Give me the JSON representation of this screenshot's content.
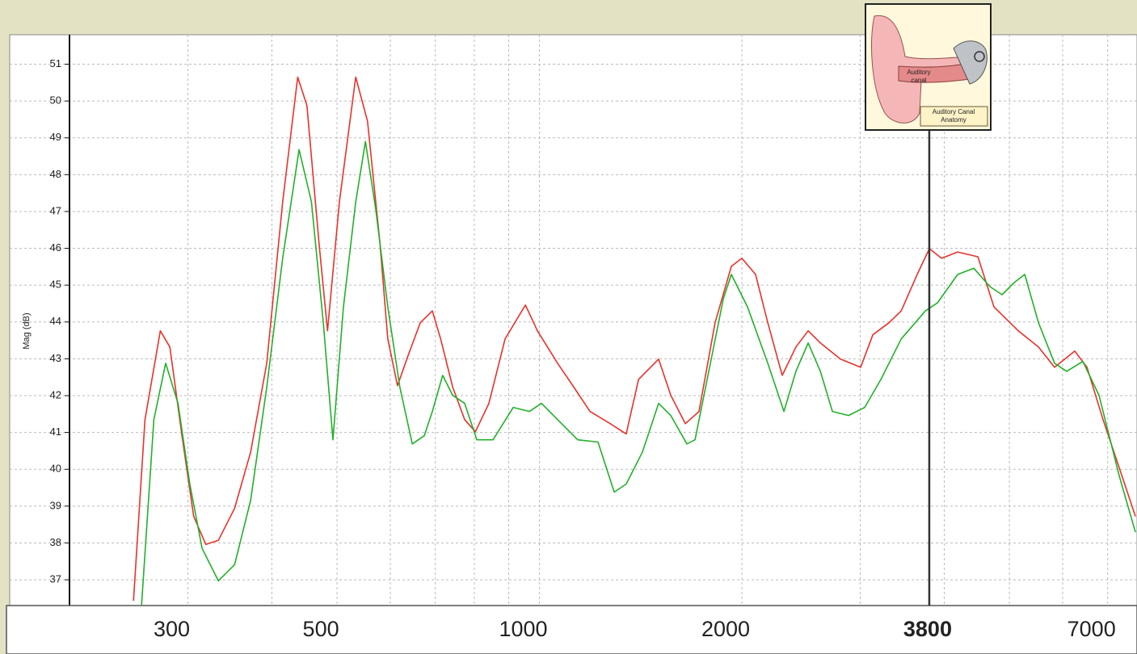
{
  "chart_data": {
    "type": "line",
    "y_label": "Mag (dB)",
    "x_scale": "log",
    "grid": true,
    "xlim": [
      200,
      7740
    ],
    "ylim": [
      36.3,
      51.8
    ],
    "yticks": [
      37,
      38,
      39,
      40,
      41,
      42,
      43,
      44,
      45,
      46,
      47,
      48,
      49,
      50,
      51
    ],
    "xticks": [
      300,
      500,
      1000,
      2000,
      7000
    ],
    "xgrid": [
      200,
      300,
      400,
      500,
      600,
      700,
      800,
      900,
      1000,
      2000,
      3000,
      4000,
      5000,
      6000,
      7000
    ],
    "cursor": 3800,
    "series": [
      {
        "color": "#e8322b",
        "x": [
          249,
          259,
          273,
          282,
          294,
          306,
          319,
          333,
          352,
          372,
          393,
          415,
          437,
          451,
          470,
          484,
          504,
          533,
          555,
          579,
          595,
          615,
          638,
          665,
          693,
          713,
          743,
          774,
          803,
          841,
          889,
          953,
          993,
          1064,
          1125,
          1189,
          1274,
          1346,
          1404,
          1504,
          1568,
          1648,
          1727,
          1825,
          1929,
          2000,
          2096,
          2186,
          2297,
          2407,
          2510,
          2617,
          2804,
          3004,
          3132,
          3310,
          3452,
          3646,
          3802,
          3964,
          4188,
          4488,
          4742,
          5154,
          5524,
          5836,
          6254,
          6522,
          6890,
          7282,
          7700
        ],
        "values": [
          36.43,
          41.35,
          43.76,
          43.32,
          40.91,
          38.72,
          37.96,
          38.07,
          38.94,
          40.47,
          42.88,
          47.26,
          50.65,
          49.88,
          46.16,
          43.76,
          47.26,
          50.65,
          49.45,
          46.16,
          43.54,
          42.27,
          43.1,
          43.98,
          44.3,
          43.54,
          42.23,
          41.35,
          41.02,
          41.79,
          43.54,
          44.46,
          43.76,
          42.88,
          42.23,
          41.57,
          41.24,
          40.96,
          42.44,
          42.99,
          42.01,
          41.24,
          41.57,
          43.98,
          45.51,
          45.73,
          45.29,
          43.98,
          42.55,
          43.32,
          43.76,
          43.43,
          42.99,
          42.77,
          43.65,
          43.98,
          44.3,
          45.29,
          45.99,
          45.73,
          45.9,
          45.77,
          44.41,
          43.76,
          43.32,
          42.77,
          43.21,
          42.77,
          41.35,
          40.04,
          38.72
        ]
      },
      {
        "color": "#22b02a",
        "x": [
          256,
          267,
          278,
          290,
          302,
          315,
          333,
          352,
          372,
          393,
          415,
          439,
          458,
          477,
          493,
          511,
          533,
          551,
          571,
          595,
          620,
          647,
          674,
          693,
          718,
          743,
          774,
          807,
          853,
          914,
          966,
          1007,
          1064,
          1140,
          1222,
          1292,
          1346,
          1423,
          1504,
          1568,
          1657,
          1704,
          1776,
          1877,
          1929,
          2039,
          2186,
          2310,
          2407,
          2510,
          2617,
          2727,
          2882,
          3046,
          3220,
          3452,
          3749,
          3908,
          4188,
          4426,
          4677,
          4876,
          5082,
          5270,
          5524,
          5836,
          6084,
          6430,
          6796,
          7282,
          7700
        ],
        "values": [
          36.32,
          41.35,
          42.88,
          41.79,
          39.6,
          37.85,
          36.97,
          37.41,
          39.16,
          42.23,
          45.73,
          48.68,
          47.26,
          43.98,
          40.8,
          44.41,
          47.26,
          48.9,
          47.04,
          44.41,
          42.23,
          40.69,
          40.91,
          41.57,
          42.55,
          42.01,
          41.79,
          40.8,
          40.8,
          41.68,
          41.57,
          41.79,
          41.35,
          40.8,
          40.74,
          39.38,
          39.6,
          40.47,
          41.79,
          41.46,
          40.69,
          40.8,
          42.44,
          44.63,
          45.29,
          44.41,
          42.88,
          41.57,
          42.66,
          43.43,
          42.66,
          41.57,
          41.46,
          41.68,
          42.44,
          43.54,
          44.3,
          44.52,
          45.29,
          45.46,
          44.96,
          44.74,
          45.07,
          45.29,
          43.98,
          42.88,
          42.66,
          42.93,
          42.01,
          39.82,
          38.29
        ]
      }
    ]
  },
  "inset": {
    "label_lines": [
      "Auditory",
      "canal"
    ],
    "caption_lines": [
      "Auditory Canal",
      "Anatomy"
    ]
  }
}
